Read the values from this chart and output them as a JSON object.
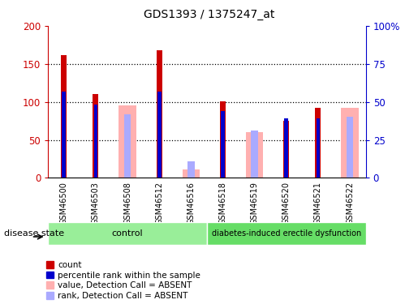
{
  "title": "GDS1393 / 1375247_at",
  "samples": [
    "GSM46500",
    "GSM46503",
    "GSM46508",
    "GSM46512",
    "GSM46516",
    "GSM46518",
    "GSM46519",
    "GSM46520",
    "GSM46521",
    "GSM46522"
  ],
  "count": [
    162,
    110,
    0,
    168,
    0,
    101,
    0,
    75,
    92,
    0
  ],
  "percentile_rank": [
    57,
    48,
    0,
    57,
    0,
    44,
    0,
    39,
    39,
    0
  ],
  "absent_value": [
    0,
    0,
    95,
    0,
    11,
    0,
    60,
    0,
    0,
    92
  ],
  "absent_rank": [
    0,
    0,
    42,
    0,
    11,
    0,
    31,
    0,
    0,
    40
  ],
  "color_count": "#cc0000",
  "color_rank": "#0000cc",
  "color_absent_value": "#ffb0b0",
  "color_absent_rank": "#aaaaff",
  "ylim_left": [
    0,
    200
  ],
  "ylim_right": [
    0,
    100
  ],
  "yticks_left": [
    0,
    50,
    100,
    150,
    200
  ],
  "ytick_labels_left": [
    "0",
    "50",
    "100",
    "150",
    "200"
  ],
  "yticks_right": [
    0,
    25,
    50,
    75,
    100
  ],
  "ytick_labels_right": [
    "0",
    "25",
    "50",
    "75",
    "100%"
  ],
  "groups": [
    {
      "label": "control",
      "start": 0,
      "end": 5,
      "color": "#99ee99"
    },
    {
      "label": "diabetes-induced erectile dysfunction",
      "start": 5,
      "end": 10,
      "color": "#66dd66"
    }
  ],
  "legend_items": [
    {
      "label": "count",
      "color": "#cc0000"
    },
    {
      "label": "percentile rank within the sample",
      "color": "#0000cc"
    },
    {
      "label": "value, Detection Call = ABSENT",
      "color": "#ffb0b0"
    },
    {
      "label": "rank, Detection Call = ABSENT",
      "color": "#aaaaff"
    }
  ],
  "disease_state_label": "disease state",
  "figsize": [
    5.15,
    3.75
  ],
  "dpi": 100
}
